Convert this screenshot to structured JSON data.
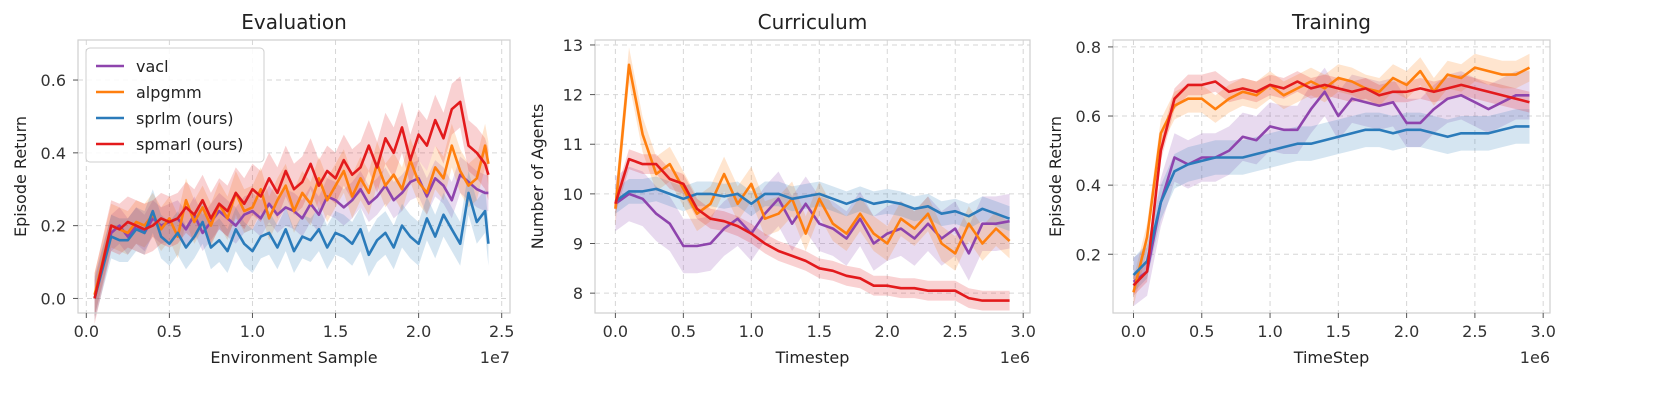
{
  "chart_data": [
    {
      "type": "line",
      "title": "Evaluation",
      "xlabel": "Environment Sample",
      "ylabel": "Episode Return",
      "x_offset_label": "1e7",
      "xlim": [
        -0.05,
        2.55
      ],
      "ylim": [
        -0.04,
        0.71
      ],
      "xticks": [
        0.0,
        0.5,
        1.0,
        1.5,
        2.0,
        2.5
      ],
      "xtick_labels": [
        "0.0",
        "0.5",
        "1.0",
        "1.5",
        "2.0",
        "2.5"
      ],
      "yticks": [
        0.0,
        0.2,
        0.4,
        0.6
      ],
      "ytick_labels": [
        "0.0",
        "0.2",
        "0.4",
        "0.6"
      ],
      "grid": true,
      "legend": "upper-left",
      "x": [
        0.05,
        0.15,
        0.2,
        0.25,
        0.3,
        0.35,
        0.4,
        0.45,
        0.5,
        0.55,
        0.6,
        0.65,
        0.7,
        0.75,
        0.8,
        0.85,
        0.9,
        0.95,
        1.0,
        1.05,
        1.1,
        1.15,
        1.2,
        1.25,
        1.3,
        1.35,
        1.4,
        1.45,
        1.5,
        1.55,
        1.6,
        1.65,
        1.7,
        1.75,
        1.8,
        1.85,
        1.9,
        1.95,
        2.0,
        2.05,
        2.1,
        2.15,
        2.2,
        2.25,
        2.3,
        2.35,
        2.4,
        2.42
      ],
      "series": [
        {
          "name": "vacl",
          "color": "#8e44ad",
          "band": 0.05,
          "values": [
            0.0,
            0.18,
            0.2,
            0.17,
            0.2,
            0.18,
            0.22,
            0.2,
            0.21,
            0.22,
            0.19,
            0.23,
            0.18,
            0.21,
            0.24,
            0.22,
            0.2,
            0.23,
            0.24,
            0.22,
            0.26,
            0.23,
            0.25,
            0.24,
            0.22,
            0.26,
            0.23,
            0.28,
            0.27,
            0.25,
            0.27,
            0.3,
            0.26,
            0.28,
            0.31,
            0.27,
            0.29,
            0.32,
            0.33,
            0.28,
            0.33,
            0.31,
            0.27,
            0.34,
            0.32,
            0.3,
            0.29,
            0.29
          ]
        },
        {
          "name": "alpgmm",
          "color": "#ff7f0e",
          "band": 0.06,
          "values": [
            0.01,
            0.2,
            0.19,
            0.18,
            0.21,
            0.2,
            0.23,
            0.19,
            0.22,
            0.17,
            0.27,
            0.21,
            0.25,
            0.2,
            0.26,
            0.22,
            0.29,
            0.24,
            0.25,
            0.3,
            0.22,
            0.27,
            0.31,
            0.24,
            0.29,
            0.26,
            0.33,
            0.27,
            0.31,
            0.35,
            0.28,
            0.33,
            0.29,
            0.37,
            0.31,
            0.34,
            0.3,
            0.38,
            0.32,
            0.29,
            0.36,
            0.33,
            0.42,
            0.35,
            0.31,
            0.33,
            0.42,
            0.37
          ]
        },
        {
          "name": "sprlm (ours)",
          "color": "#2b7bba",
          "band": 0.06,
          "values": [
            0.0,
            0.17,
            0.16,
            0.16,
            0.19,
            0.18,
            0.24,
            0.17,
            0.15,
            0.18,
            0.14,
            0.17,
            0.21,
            0.14,
            0.16,
            0.13,
            0.19,
            0.15,
            0.13,
            0.17,
            0.18,
            0.14,
            0.19,
            0.13,
            0.17,
            0.16,
            0.19,
            0.14,
            0.18,
            0.17,
            0.15,
            0.19,
            0.12,
            0.16,
            0.18,
            0.14,
            0.2,
            0.17,
            0.15,
            0.22,
            0.17,
            0.23,
            0.19,
            0.15,
            0.29,
            0.21,
            0.24,
            0.15
          ]
        },
        {
          "name": "spmarl (ours)",
          "color": "#e31a1c",
          "band": 0.07,
          "values": [
            0.0,
            0.2,
            0.19,
            0.21,
            0.2,
            0.19,
            0.2,
            0.22,
            0.21,
            0.22,
            0.25,
            0.23,
            0.27,
            0.22,
            0.26,
            0.24,
            0.29,
            0.26,
            0.3,
            0.28,
            0.33,
            0.29,
            0.35,
            0.3,
            0.32,
            0.37,
            0.31,
            0.35,
            0.33,
            0.38,
            0.34,
            0.36,
            0.42,
            0.36,
            0.44,
            0.4,
            0.47,
            0.38,
            0.45,
            0.42,
            0.49,
            0.44,
            0.52,
            0.54,
            0.42,
            0.4,
            0.37,
            0.34
          ]
        }
      ]
    },
    {
      "type": "line",
      "title": "Curriculum",
      "xlabel": "Timestep",
      "ylabel": "Number of Agents",
      "x_offset_label": "1e6",
      "xlim": [
        -0.15,
        3.05
      ],
      "ylim": [
        7.6,
        13.1
      ],
      "xticks": [
        0.0,
        0.5,
        1.0,
        1.5,
        2.0,
        2.5,
        3.0
      ],
      "xtick_labels": [
        "0.0",
        "0.5",
        "1.0",
        "1.5",
        "2.0",
        "2.5",
        "3.0"
      ],
      "yticks": [
        8,
        9,
        10,
        11,
        12,
        13
      ],
      "ytick_labels": [
        "8",
        "9",
        "10",
        "11",
        "12",
        "13"
      ],
      "grid": true,
      "x": [
        0.0,
        0.1,
        0.2,
        0.3,
        0.4,
        0.5,
        0.6,
        0.7,
        0.8,
        0.9,
        1.0,
        1.1,
        1.2,
        1.3,
        1.4,
        1.5,
        1.6,
        1.7,
        1.8,
        1.9,
        2.0,
        2.1,
        2.2,
        2.3,
        2.4,
        2.5,
        2.6,
        2.7,
        2.8,
        2.9
      ],
      "series": [
        {
          "name": "vacl",
          "color": "#8e44ad",
          "band": 0.55,
          "values": [
            9.8,
            10.0,
            9.9,
            9.6,
            9.4,
            8.95,
            8.95,
            9.0,
            9.3,
            9.5,
            9.2,
            9.6,
            9.9,
            9.4,
            9.8,
            9.4,
            9.3,
            9.1,
            9.5,
            9.0,
            9.2,
            9.3,
            9.1,
            9.4,
            9.1,
            9.3,
            8.8,
            9.4,
            9.4,
            9.45
          ]
        },
        {
          "name": "alpgmm",
          "color": "#ff7f0e",
          "band": 0.35,
          "values": [
            9.7,
            12.6,
            11.2,
            10.4,
            10.6,
            10.1,
            9.6,
            9.8,
            10.4,
            9.8,
            10.2,
            9.5,
            9.6,
            9.9,
            9.2,
            9.9,
            9.4,
            9.2,
            9.6,
            9.2,
            9.0,
            9.5,
            9.3,
            9.6,
            9.0,
            8.8,
            9.4,
            9.0,
            9.3,
            9.05
          ]
        },
        {
          "name": "sprlm (ours)",
          "color": "#2b7bba",
          "band": 0.25,
          "values": [
            9.85,
            10.05,
            10.05,
            10.1,
            10.0,
            9.9,
            10.0,
            10.0,
            9.95,
            10.0,
            9.8,
            10.0,
            10.0,
            9.9,
            9.95,
            10.0,
            9.9,
            9.8,
            9.9,
            9.8,
            9.85,
            9.8,
            9.7,
            9.75,
            9.6,
            9.65,
            9.55,
            9.7,
            9.6,
            9.5
          ]
        },
        {
          "name": "spmarl (ours)",
          "color": "#e31a1c",
          "band": 0.2,
          "values": [
            9.8,
            10.7,
            10.6,
            10.6,
            10.3,
            10.2,
            9.7,
            9.5,
            9.45,
            9.35,
            9.2,
            9.0,
            8.85,
            8.75,
            8.65,
            8.5,
            8.45,
            8.35,
            8.3,
            8.15,
            8.15,
            8.1,
            8.1,
            8.05,
            8.05,
            8.05,
            7.9,
            7.85,
            7.85,
            7.85
          ]
        }
      ]
    },
    {
      "type": "line",
      "title": "Training",
      "xlabel": "TimeStep",
      "ylabel": "Episode Return",
      "x_offset_label": "1e6",
      "xlim": [
        -0.15,
        3.05
      ],
      "ylim": [
        0.03,
        0.82
      ],
      "xticks": [
        0.0,
        0.5,
        1.0,
        1.5,
        2.0,
        2.5,
        3.0
      ],
      "xtick_labels": [
        "0.0",
        "0.5",
        "1.0",
        "1.5",
        "2.0",
        "2.5",
        "3.0"
      ],
      "yticks": [
        0.2,
        0.4,
        0.6,
        0.8
      ],
      "ytick_labels": [
        "0.2",
        "0.4",
        "0.6",
        "0.8"
      ],
      "grid": true,
      "x": [
        0.0,
        0.1,
        0.2,
        0.3,
        0.4,
        0.5,
        0.6,
        0.7,
        0.8,
        0.9,
        1.0,
        1.1,
        1.2,
        1.3,
        1.4,
        1.5,
        1.6,
        1.7,
        1.8,
        1.9,
        2.0,
        2.1,
        2.2,
        2.3,
        2.4,
        2.5,
        2.6,
        2.7,
        2.8,
        2.9
      ],
      "series": [
        {
          "name": "vacl",
          "color": "#8e44ad",
          "band": 0.07,
          "values": [
            0.12,
            0.15,
            0.35,
            0.48,
            0.46,
            0.48,
            0.48,
            0.5,
            0.54,
            0.53,
            0.57,
            0.56,
            0.56,
            0.62,
            0.67,
            0.6,
            0.65,
            0.64,
            0.63,
            0.64,
            0.58,
            0.58,
            0.62,
            0.65,
            0.66,
            0.64,
            0.62,
            0.64,
            0.66,
            0.66
          ]
        },
        {
          "name": "alpgmm",
          "color": "#ff7f0e",
          "band": 0.04,
          "values": [
            0.09,
            0.25,
            0.55,
            0.63,
            0.65,
            0.65,
            0.62,
            0.65,
            0.67,
            0.66,
            0.69,
            0.66,
            0.68,
            0.7,
            0.68,
            0.71,
            0.7,
            0.68,
            0.67,
            0.71,
            0.69,
            0.73,
            0.67,
            0.72,
            0.71,
            0.74,
            0.73,
            0.72,
            0.72,
            0.74
          ]
        },
        {
          "name": "sprlm (ours)",
          "color": "#2b7bba",
          "band": 0.05,
          "values": [
            0.14,
            0.18,
            0.35,
            0.44,
            0.46,
            0.47,
            0.48,
            0.48,
            0.48,
            0.49,
            0.5,
            0.51,
            0.52,
            0.52,
            0.53,
            0.54,
            0.55,
            0.56,
            0.56,
            0.55,
            0.56,
            0.56,
            0.55,
            0.54,
            0.55,
            0.55,
            0.55,
            0.56,
            0.57,
            0.57
          ]
        },
        {
          "name": "spmarl (ours)",
          "color": "#e31a1c",
          "band": 0.03,
          "values": [
            0.11,
            0.15,
            0.5,
            0.65,
            0.69,
            0.69,
            0.7,
            0.67,
            0.68,
            0.67,
            0.69,
            0.68,
            0.7,
            0.68,
            0.69,
            0.68,
            0.67,
            0.68,
            0.66,
            0.67,
            0.67,
            0.68,
            0.67,
            0.68,
            0.69,
            0.68,
            0.67,
            0.66,
            0.65,
            0.64
          ]
        }
      ]
    }
  ]
}
